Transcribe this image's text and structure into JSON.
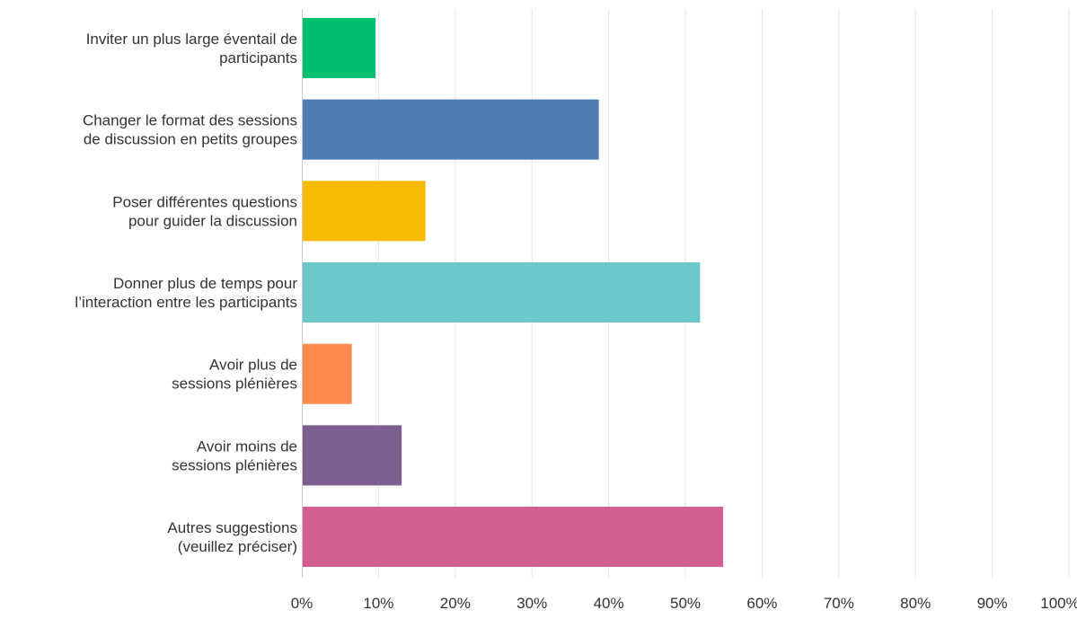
{
  "chart_data": {
    "type": "bar",
    "orientation": "horizontal",
    "title": "",
    "xlabel": "",
    "ylabel": "",
    "xlim": [
      0,
      100
    ],
    "x_ticks": [
      "0%",
      "10%",
      "20%",
      "30%",
      "40%",
      "50%",
      "60%",
      "70%",
      "80%",
      "90%",
      "100%"
    ],
    "grid": true,
    "legend": "none",
    "categories": [
      [
        "Inviter un plus large éventail de",
        "participants"
      ],
      [
        "Changer le format des sessions",
        "de discussion en petits groupes"
      ],
      [
        "Poser différentes questions",
        "pour guider la discussion"
      ],
      [
        "Donner plus de temps pour",
        "l’interaction entre les participants"
      ],
      [
        "Avoir plus de",
        "sessions plénières"
      ],
      [
        "Avoir moins de",
        "sessions plénières"
      ],
      [
        "Autres suggestions",
        "(veuillez préciser)"
      ]
    ],
    "values": [
      9.5,
      38.6,
      16.0,
      51.8,
      6.4,
      12.9,
      54.8
    ],
    "colors": [
      "#00bf6f",
      "#507cb6",
      "#f6bb00",
      "#6bc8cd",
      "#ff8b4f",
      "#7d5e90",
      "#d25f90"
    ]
  }
}
